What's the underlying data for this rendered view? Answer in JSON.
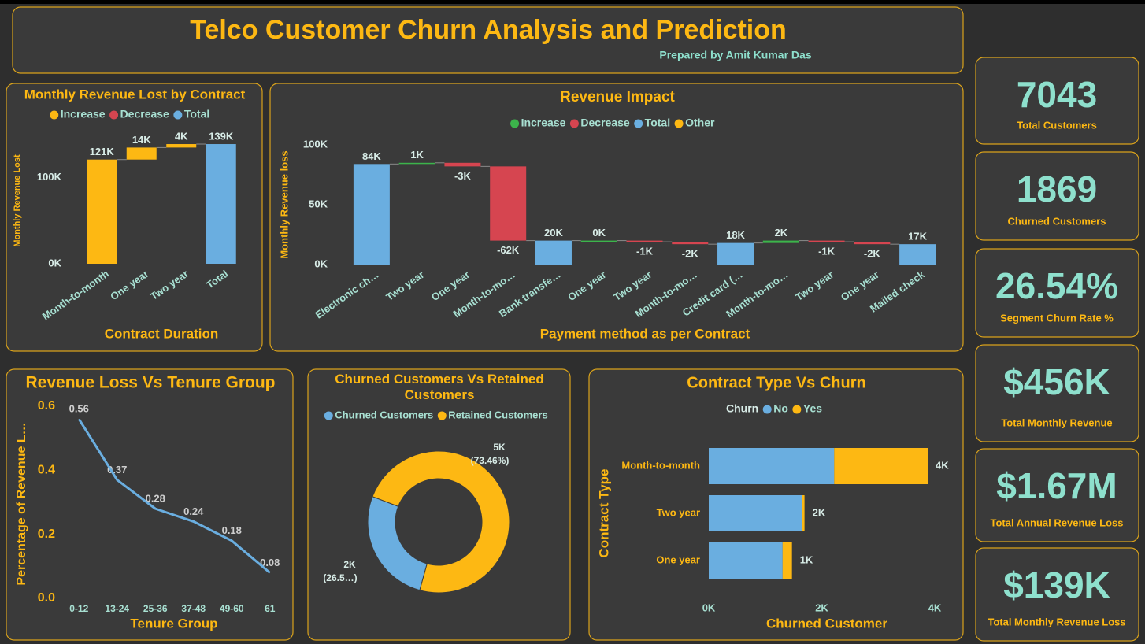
{
  "header": {
    "title": "Telco Customer Churn Analysis and Prediction",
    "subtitle": "Prepared by Amit Kumar Das"
  },
  "kpis": [
    {
      "value": "7043",
      "label": "Total Customers"
    },
    {
      "value": "1869",
      "label": "Churned Customers"
    },
    {
      "value": "26.54%",
      "label": "Segment Churn Rate %"
    },
    {
      "value": "$456K",
      "label": "Total Monthly Revenue"
    },
    {
      "value": "$1.67M",
      "label": "Total Annual Revenue Loss"
    },
    {
      "value": "$139K",
      "label": "Total Monthly Revenue Loss"
    }
  ],
  "chart_data": [
    {
      "type": "waterfall",
      "title": "Monthly Revenue Lost by Contract",
      "legend": [
        {
          "name": "Increase",
          "color": "#fdb813"
        },
        {
          "name": "Decrease",
          "color": "#d64550"
        },
        {
          "name": "Total",
          "color": "#6aaee0"
        }
      ],
      "total_legend_index": 2,
      "categories": [
        "Month-to-month",
        "One year",
        "Two year",
        "Total"
      ],
      "values": [
        121000,
        14000,
        4000,
        139000
      ],
      "value_labels": [
        "121K",
        "14K",
        "4K",
        "139K"
      ],
      "kinds": [
        0,
        0,
        0,
        2
      ],
      "ylim": [
        0,
        150000
      ],
      "yticks": [
        {
          "value": 0,
          "label": "0K"
        },
        {
          "value": 100000,
          "label": "100K"
        }
      ],
      "xlabel": "Contract Duration",
      "ylabel": "Monthly Revenue Lost"
    },
    {
      "type": "waterfall",
      "title": "Revenue Impact",
      "legend": [
        {
          "name": "Increase",
          "color": "#3cb44b"
        },
        {
          "name": "Decrease",
          "color": "#d64550"
        },
        {
          "name": "Total",
          "color": "#6aaee0"
        },
        {
          "name": "Other",
          "color": "#fdb813"
        }
      ],
      "total_legend_index": 2,
      "categories": [
        "Electronic ch…",
        "Two year",
        "One year",
        "Month-to-mo…",
        "Bank transfe…",
        "One year",
        "Two year",
        "Month-to-mo…",
        "Credit card (…",
        "Month-to-mo…",
        "Two year",
        "One year",
        "Mailed check"
      ],
      "values": [
        84000,
        1000,
        -3000,
        -62000,
        20000,
        0,
        -1000,
        -2000,
        18000,
        2000,
        -1000,
        -2000,
        17000
      ],
      "value_labels": [
        "84K",
        "1K",
        "-3K",
        "-62K",
        "20K",
        "0K",
        "-1K",
        "-2K",
        "18K",
        "2K",
        "-1K",
        "-2K",
        "17K"
      ],
      "kinds": [
        2,
        0,
        1,
        1,
        2,
        0,
        1,
        1,
        2,
        0,
        1,
        1,
        2
      ],
      "ylim": [
        0,
        100000
      ],
      "yticks": [
        {
          "value": 0,
          "label": "0K"
        },
        {
          "value": 50000,
          "label": "50K"
        },
        {
          "value": 100000,
          "label": "100K"
        }
      ],
      "xlabel": "Payment method as per Contract",
      "ylabel": "Monthly Revenue loss"
    },
    {
      "type": "line",
      "title": "Revenue Loss Vs Tenure Group",
      "categories": [
        "0-12",
        "13-24",
        "25-36",
        "37-48",
        "49-60",
        "61"
      ],
      "values": [
        0.56,
        0.37,
        0.28,
        0.24,
        0.18,
        0.08
      ],
      "color": "#6aaee0",
      "ylim": [
        0,
        0.6
      ],
      "yticks": [
        {
          "value": 0,
          "label": "0.0"
        },
        0.2,
        0.4,
        0.6
      ],
      "xlabel": "Tenure Group",
      "ylabel": "Percentage of Revenue L…"
    },
    {
      "type": "pie",
      "title": "Churned Customers Vs Retained Customers",
      "categories": [
        "Churned Customers",
        "Retained Customers"
      ],
      "values": [
        1869,
        5174
      ],
      "colors": [
        "#6aaee0",
        "#fdb813"
      ],
      "value_labels": [
        "2K",
        "5K"
      ],
      "percent_labels": [
        "(26.5…)",
        "(73.46%)"
      ]
    },
    {
      "type": "hbar_stacked",
      "title": "Contract Type Vs Churn",
      "legend_title": "Churn",
      "categories": [
        "Month-to-month",
        "Two year",
        "One year"
      ],
      "series": [
        {
          "name": "No",
          "color": "#6aaee0",
          "values": [
            2220,
            1647,
            1307
          ]
        },
        {
          "name": "Yes",
          "color": "#fdb813",
          "values": [
            1655,
            48,
            166
          ]
        }
      ],
      "total_labels": [
        "4K",
        "2K",
        "1K"
      ],
      "xlim": [
        0,
        4000
      ],
      "xticks": [
        {
          "value": 0,
          "label": "0K"
        },
        {
          "value": 2000,
          "label": "2K"
        },
        {
          "value": 4000,
          "label": "4K"
        }
      ],
      "xlabel": "Churned Customer",
      "ylabel": "Contract Type"
    }
  ]
}
